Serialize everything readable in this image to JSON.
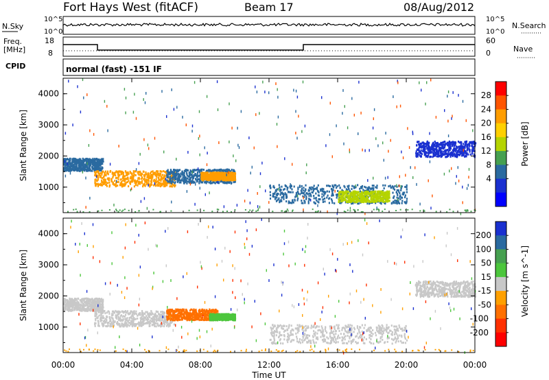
{
  "header": {
    "title": "Fort Hays West (fitACF)",
    "beam": "Beam 17",
    "date": "08/Aug/2012"
  },
  "top_panel": {
    "left_label": "N.Sky",
    "right_label": "N.Search",
    "left_ticks": [
      "10^5",
      "10^0"
    ],
    "right_ticks": [
      "10^5",
      "10^0"
    ]
  },
  "freq_panel": {
    "left_label_1": "Freq.",
    "left_label_2": "[MHz]",
    "left_ticks": [
      "18",
      "8"
    ],
    "right_ticks": [
      "60",
      "0"
    ],
    "right_label": "Nave",
    "cpid_label": "CPID",
    "cpid_text": "normal (fast) -151 IF",
    "freq_steps": [
      [
        0,
        14.5
      ],
      [
        2,
        10.5
      ],
      [
        14,
        14.5
      ],
      [
        24,
        14.5
      ]
    ],
    "nave_level": 10
  },
  "chart_data": [
    {
      "type": "heatmap",
      "name": "Power",
      "ylabel": "Slant Range [km]",
      "xlabel": "Time UT",
      "ylim": [
        180,
        4500
      ],
      "xlim": [
        0,
        24
      ],
      "yticks": [
        1000,
        2000,
        3000,
        4000
      ],
      "xticks": [
        "00:00",
        "04:00",
        "08:00",
        "12:00",
        "16:00",
        "20:00",
        "00:00"
      ],
      "colorbar": {
        "label": "Power [dB]",
        "ticks": [
          "28",
          "24",
          "20",
          "16",
          "12",
          "8",
          "4"
        ],
        "colors": [
          "#ff0000",
          "#ff5500",
          "#ff9d00",
          "#ffd000",
          "#b5d400",
          "#46a050",
          "#2a6aa0",
          "#1a30d0",
          "#0000ff"
        ]
      },
      "regions": [
        {
          "t0": 0.0,
          "t1": 2.3,
          "r0": 1550,
          "r1": 1950,
          "color": "#2a6aa0"
        },
        {
          "t0": 1.8,
          "t1": 6.5,
          "r0": 1050,
          "r1": 1550,
          "color": "#ff9d00"
        },
        {
          "t0": 6.0,
          "t1": 10.0,
          "r0": 1150,
          "r1": 1600,
          "color": "#2a6aa0"
        },
        {
          "t0": 8.0,
          "t1": 10.0,
          "r0": 1250,
          "r1": 1500,
          "color": "#ff9d00"
        },
        {
          "t0": 12.0,
          "t1": 20.0,
          "r0": 500,
          "r1": 1100,
          "color": "#2a6aa0"
        },
        {
          "t0": 16.0,
          "t1": 19.0,
          "r0": 550,
          "r1": 900,
          "color": "#b5d400"
        },
        {
          "t0": 20.5,
          "t1": 24.0,
          "r0": 2000,
          "r1": 2500,
          "color": "#1a30d0"
        }
      ]
    },
    {
      "type": "heatmap",
      "name": "Velocity",
      "ylabel": "Slant Range [km]",
      "xlabel": "Time UT",
      "ylim": [
        180,
        4500
      ],
      "xlim": [
        0,
        24
      ],
      "yticks": [
        1000,
        2000,
        3000,
        4000
      ],
      "xticks": [
        "00:00",
        "04:00",
        "08:00",
        "12:00",
        "16:00",
        "20:00",
        "00:00"
      ],
      "colorbar": {
        "label": "Velocity [m s^-1]",
        "ticks": [
          "200",
          "100",
          "50",
          "15",
          "-15",
          "-50",
          "-100",
          "-200"
        ],
        "colors": [
          "#1a30d0",
          "#2a6aa0",
          "#46a050",
          "#4cc63c",
          "#c8c8c8",
          "#ffa000",
          "#ff7000",
          "#ff3000",
          "#ff0000"
        ]
      },
      "regions": [
        {
          "t0": 0.0,
          "t1": 2.3,
          "r0": 1550,
          "r1": 1950,
          "color": "#c8c8c8"
        },
        {
          "t0": 1.8,
          "t1": 6.5,
          "r0": 1050,
          "r1": 1550,
          "color": "#c8c8c8"
        },
        {
          "t0": 6.0,
          "t1": 9.0,
          "r0": 1250,
          "r1": 1600,
          "color": "#ff7000"
        },
        {
          "t0": 8.5,
          "t1": 10.0,
          "r0": 1250,
          "r1": 1450,
          "color": "#4cc63c"
        },
        {
          "t0": 12.0,
          "t1": 20.0,
          "r0": 500,
          "r1": 1100,
          "color": "#c8c8c8"
        },
        {
          "t0": 20.5,
          "t1": 24.0,
          "r0": 2000,
          "r1": 2500,
          "color": "#c8c8c8"
        }
      ]
    }
  ]
}
